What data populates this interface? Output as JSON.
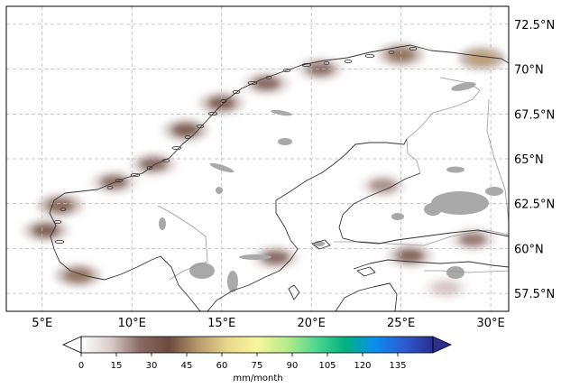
{
  "map": {
    "lon_range": [
      3,
      31
    ],
    "lat_range": [
      56.5,
      73.5
    ],
    "grid": true,
    "lon_ticks": [
      {
        "value": 5,
        "label": "5°E"
      },
      {
        "value": 10,
        "label": "10°E"
      },
      {
        "value": 15,
        "label": "15°E"
      },
      {
        "value": 20,
        "label": "20°E"
      },
      {
        "value": 25,
        "label": "25°E"
      },
      {
        "value": 30,
        "label": "30°E"
      }
    ],
    "lat_ticks": [
      {
        "value": 72.5,
        "label": "72.5°N"
      },
      {
        "value": 70,
        "label": "70°N"
      },
      {
        "value": 67.5,
        "label": "67.5°N"
      },
      {
        "value": 65,
        "label": "65°N"
      },
      {
        "value": 62.5,
        "label": "62.5°N"
      },
      {
        "value": 60,
        "label": "60°N"
      },
      {
        "value": 57.5,
        "label": "57.5°N"
      }
    ]
  },
  "colorbar": {
    "unit_label": "mm/month",
    "ticks": [
      "0",
      "15",
      "30",
      "45",
      "60",
      "75",
      "90",
      "105",
      "120",
      "135"
    ],
    "range": [
      0,
      150
    ],
    "extend": "both",
    "colors": [
      "#ffffff",
      "#d9cdca",
      "#8a6a63",
      "#6b4a3e",
      "#b89a6c",
      "#e8d98c",
      "#f7f79a",
      "#b7ec8a",
      "#4fd88f",
      "#00b27f",
      "#0a8ef2",
      "#2f5bd0",
      "#2a2f8f"
    ]
  },
  "precip_maxima": [
    {
      "lon": 6.0,
      "lat": 62.4,
      "value": 40
    },
    {
      "lon": 5.2,
      "lat": 61.0,
      "value": 36
    },
    {
      "lon": 7.0,
      "lat": 58.5,
      "value": 42
    },
    {
      "lon": 9.0,
      "lat": 63.7,
      "value": 30
    },
    {
      "lon": 11.2,
      "lat": 64.7,
      "value": 32
    },
    {
      "lon": 13.0,
      "lat": 66.6,
      "value": 38
    },
    {
      "lon": 15.0,
      "lat": 68.1,
      "value": 36
    },
    {
      "lon": 17.5,
      "lat": 69.2,
      "value": 32
    },
    {
      "lon": 20.5,
      "lat": 70.0,
      "value": 30
    },
    {
      "lon": 25.0,
      "lat": 70.8,
      "value": 42
    },
    {
      "lon": 29.5,
      "lat": 70.6,
      "value": 50
    },
    {
      "lon": 18.0,
      "lat": 59.5,
      "value": 32
    },
    {
      "lon": 25.5,
      "lat": 59.6,
      "value": 34
    },
    {
      "lon": 24.0,
      "lat": 63.5,
      "value": 22
    },
    {
      "lon": 29.0,
      "lat": 60.5,
      "value": 26
    },
    {
      "lon": 27.5,
      "lat": 57.8,
      "value": 14
    }
  ]
}
